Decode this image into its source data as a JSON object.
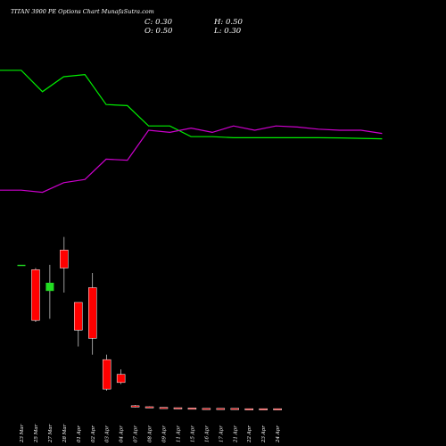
{
  "header": {
    "title": "TITAN 3900 PE Options Chart MunafaSutra.com",
    "close": "C: 0.30",
    "high": "H: 0.50",
    "open": "O: 0.50",
    "low": "L: 0.30"
  },
  "colors": {
    "background": "#000000",
    "bullish": "#22dd22",
    "bearish": "#ff0000",
    "wick": "#ffffff",
    "green_line": "#00ee00",
    "magenta_line": "#cc00cc"
  },
  "chart_data": [
    {
      "type": "line",
      "x": [
        "23 Mar",
        "25 Mar",
        "27 Mar",
        "28 Mar",
        "01 Apr",
        "02 Apr",
        "03 Apr",
        "04 Apr",
        "07 Apr",
        "08 Apr",
        "09 Apr",
        "11 Apr",
        "15 Apr",
        "16 Apr",
        "17 Apr",
        "21 Apr",
        "22 Apr",
        "23 Apr",
        "24 Apr"
      ],
      "series": [
        {
          "color": "#00ee00",
          "values": [
            88,
            88,
            78,
            85,
            86,
            72,
            71.5,
            62,
            62,
            57,
            57,
            56.5,
            56.5,
            56.5,
            56.5,
            56.5,
            56.4,
            56.2,
            56
          ]
        },
        {
          "color": "#cc00cc",
          "values": [
            32,
            32,
            31,
            35.5,
            37,
            46.5,
            46,
            60,
            59,
            61,
            59,
            62,
            60,
            62,
            61.5,
            60.5,
            60,
            60,
            58.5
          ]
        }
      ],
      "ylim": [
        0,
        100
      ]
    },
    {
      "type": "bar",
      "subtype": "candlestick",
      "categories": [
        "23 Mar",
        "25 Mar",
        "27 Mar",
        "28 Mar",
        "01 Apr",
        "02 Apr",
        "03 Apr",
        "04 Apr",
        "07 Apr",
        "08 Apr",
        "09 Apr",
        "11 Apr",
        "15 Apr",
        "16 Apr",
        "17 Apr",
        "21 Apr",
        "22 Apr",
        "23 Apr",
        "24 Apr"
      ],
      "ohlc": [
        [
          44.5,
          44.5,
          44.5,
          44.5
        ],
        [
          43,
          43.5,
          27,
          27.5
        ],
        [
          36.5,
          44.5,
          28,
          39
        ],
        [
          49,
          53,
          36,
          43.5
        ],
        [
          33,
          33,
          19.5,
          24.5
        ],
        [
          37.5,
          42,
          17,
          22
        ],
        [
          15.5,
          17,
          6,
          6.5
        ],
        [
          11,
          12.5,
          8,
          8.5
        ],
        [
          1.4,
          1.6,
          0.9,
          1.0
        ],
        [
          1.1,
          1.2,
          0.8,
          0.9
        ],
        [
          0.9,
          0.9,
          0.8,
          0.8
        ],
        [
          0.8,
          0.8,
          0.7,
          0.7
        ],
        [
          0.7,
          0.7,
          0.6,
          0.6
        ],
        [
          0.6,
          0.6,
          0.5,
          0.5
        ],
        [
          0.6,
          0.6,
          0.5,
          0.5
        ],
        [
          0.6,
          0.6,
          0.5,
          0.5
        ],
        [
          0.5,
          0.5,
          0.4,
          0.4
        ],
        [
          0.5,
          0.5,
          0.4,
          0.4
        ],
        [
          0.5,
          0.5,
          0.3,
          0.3
        ]
      ],
      "ylim": [
        0,
        60
      ]
    }
  ]
}
